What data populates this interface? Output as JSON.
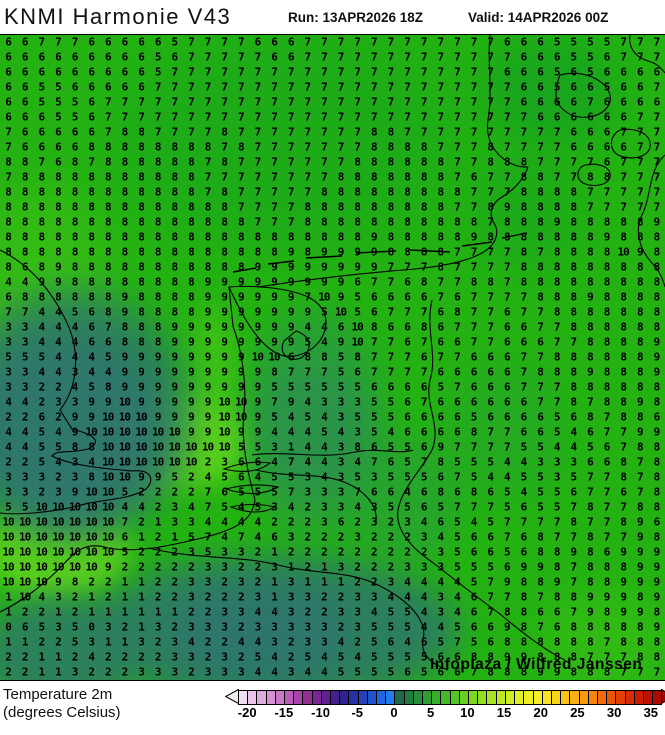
{
  "header": {
    "title": "KNMI Harmonie V43",
    "run_label": "Run: 13APR2026 18Z",
    "valid_label": "Valid: 14APR2026 00Z"
  },
  "footer": {
    "param_line1": "Temperature 2m",
    "param_line2": "(degrees Celsius)"
  },
  "attribution": "Infoplaza / Wilfred Janssen",
  "map": {
    "palette": {
      "base": "#23b212",
      "g2": "#17a320",
      "bright": "#5ed31d",
      "mid": "#2a9a43",
      "mid2": "#2d8b55",
      "cold": "#2d7d60",
      "cold2": "#2f7078"
    },
    "grid": {
      "cols": 40,
      "rows": 43,
      "unit": "degrees Celsius",
      "values": [
        "6 6 7 7 7 6 6 6 6 6 5 7 7 7 7 6 6 6 7 7 7 7 7 7 7 7 7 7 7 7 6 6 6 5 5 5 5 7 7 7",
        "6 6 6 6 6 6 6 6 6 5 6 7 7 7 7 7 6 6 7 7 7 7 7 7 7 7 7 7 7 7 7 6 6 6 5 5 6 7 7 7",
        "6 6 6 6 6 6 6 6 6 5 7 7 7 7 7 7 7 7 7 7 7 7 7 7 7 7 7 7 7 7 6 6 6 5 6 5 6 6 6 6",
        "6 6 5 5 6 6 6 6 6 7 7 7 7 7 7 7 7 7 7 7 7 7 7 7 7 7 7 7 7 7 7 6 6 5 6 6 5 6 6 7",
        "6 6 5 5 5 6 7 7 7 7 7 7 7 7 7 7 7 7 7 7 7 7 7 7 7 7 7 7 7 7 7 6 6 6 6 7 6 6 6 6",
        "6 6 6 5 5 6 7 7 7 7 7 7 7 7 7 7 7 7 7 7 7 7 7 7 7 7 7 7 7 7 7 7 6 6 6 6 6 6 7 7",
        "7 6 6 6 6 6 7 8 8 7 7 7 7 8 7 7 7 7 7 7 7 7 8 8 7 7 7 7 7 7 7 7 7 7 6 6 6 7 7 7",
        "7 6 6 6 6 8 8 8 8 8 8 8 8 7 8 7 7 7 7 7 7 7 8 8 8 8 7 7 7 8 7 7 7 7 6 6 6 6 7 7",
        "8 8 7 6 8 7 8 8 8 8 8 8 7 8 7 7 7 7 7 7 7 8 8 8 8 8 8 7 7 8 8 8 7 7 7 7 6 7 7 7",
        "7 8 8 8 8 8 8 8 8 8 8 8 7 7 7 7 7 7 7 7 8 8 8 8 8 8 8 7 6 7 7 8 8 7 7 8 8 7 7 7",
        "8 8 8 8 8 8 8 8 8 8 8 8 7 8 7 7 7 7 7 8 8 8 8 8 8 8 8 8 7 7 7 8 8 8 8 7 7 7 7 7",
        "8 8 8 8 8 8 8 8 8 8 8 8 8 8 7 7 7 7 8 8 8 8 8 8 8 8 8 7 7 8 9 8 8 8 8 7 7 7 7 7",
        "8 8 8 8 8 8 8 8 8 8 8 8 8 8 8 7 7 7 8 8 8 8 8 8 8 8 8 8 8 7 8 8 8 9 8 8 8 8 8 9",
        "8 8 8 8 8 8 8 8 8 8 8 8 8 8 8 8 8 8 8 8 8 8 9 8 8 8 8 8 9 8 8 8 8 8 8 8 9 8 8 8",
        "8 8 8 8 8 8 8 8 8 8 8 8 8 8 8 8 8 9 8 9 9 9 9 8 8 8 8 7 7 7 7 8 7 8 8 8 8 10 9 8",
        "8 6 8 9 8 8 8 8 8 8 8 8 8 8 8 9 9 9 9 9 9 9 9 7 7 7 8 7 7 7 7 8 8 8 8 8 8 8 8 8",
        "4 4 9 9 8 8 8 8 8 8 8 8 9 9 9 9 9 9 9 9 9 6 7 7 6 8 7 7 8 8 7 8 8 8 8 8 8 8 8 8",
        "6 8 8 8 8 8 8 9 8 8 8 8 9 9 9 9 9 9 7 10 9 5 6 6 6 6 7 6 7 7 7 7 8 8 8 9 8 8 8 8",
        "7 7 4 4 5 6 8 9 8 8 8 8 9 9 9 9 9 9 9 5 10 5 6 7 7 7 6 8 7 7 6 7 7 8 8 8 8 8 8 8",
        "3 3 4 4 4 6 7 8 8 8 9 9 9 9 9 9 9 9 4 4 6 10 8 6 6 8 6 7 7 7 6 6 7 7 8 8 8 8 8 8",
        "3 3 4 4 4 6 6 8 8 8 9 9 9 9 9 9 9 9 5 4 9 10 7 7 6 7 6 6 7 7 6 6 6 7 7 8 8 8 8 9",
        "5 5 5 4 4 4 5 9 9 9 9 9 9 9 9 10 10 6 8 8 5 8 7 7 7 6 7 7 6 6 6 7 7 8 8 8 8 8 8 9",
        "3 3 4 4 3 4 4 9 9 9 9 9 9 9 9 9 8 7 7 7 5 6 7 7 7 7 6 6 6 6 6 7 8 8 8 9 8 8 8 9",
        "3 3 2 2 4 5 8 9 9 9 9 9 9 9 9 9 5 5 5 5 5 5 6 6 6 6 5 7 6 6 6 7 7 7 8 8 8 8 8 8",
        "4 4 2 3 3 9 9 10 9 9 9 9 9 10 10 9 7 9 4 3 3 3 5 5 6 7 6 6 6 6 6 6 7 7 8 7 8 8 9 8",
        "2 2 6 2 9 9 10 10 10 9 9 9 9 10 10 9 5 4 5 4 3 5 5 5 6 6 6 6 5 6 6 6 6 5 6 8 7 8 8 6",
        "4 4 5 4 9 10 10 10 10 10 10 9 9 10 9 9 4 4 4 5 4 3 5 4 6 6 6 6 8 7 7 6 6 5 4 6 7 7 9 9",
        "4 4 5 5 8 8 10 10 10 10 10 10 10 10 5 5 3 1 4 4 3 8 6 5 5 6 9 7 7 7 7 5 5 4 4 5 6 7 8 8",
        "2 2 5 4 3 4 10 10 10 10 10 10 2 3 6 6 4 7 4 4 3 4 7 6 5 7 8 5 5 5 4 4 3 3 3 6 6 8 7 8",
        "3 3 3 2 3 8 10 10 9 9 5 2 4 5 6 4 5 5 3 4 3 5 3 5 5 5 6 7 5 4 4 5 5 3 5 7 7 8 7 8",
        "3 3 2 3 9 10 10 5 2 2 2 2 7 6 5 5 5 7 3 3 3 7 6 6 4 6 8 6 8 6 5 4 5 5 6 7 7 6 7 8",
        "5 5 10 10 10 10 10 4 4 2 3 4 7 5 4 5 3 4 2 3 3 4 3 5 5 6 5 7 7 7 5 6 5 5 7 8 7 7 8 8",
        "10 10 10 10 10 10 10 7 2 1 3 3 4 4 4 4 2 2 2 3 6 2 3 2 3 4 6 5 4 5 7 7 7 7 8 7 7 8 9 6",
        "10 10 10 10 10 10 10 6 1 2 1 5 7 4 7 4 6 3 2 2 2 3 2 2 2 3 4 5 6 6 7 6 8 7 7 8 7 7 9 8",
        "10 10 10 10 10 10 10 5 2 2 2 3 5 3 3 2 1 2 2 2 2 2 2 2 2 2 3 5 6 6 5 6 8 8 9 8 6 9 9 9",
        "10 10 10 10 10 10 9 2 2 2 2 2 3 3 2 2 3 1 2 1 3 2 2 2 3 3 3 5 5 5 6 9 9 8 7 8 8 8 9 9",
        "10 10 10 9 8 2 2 1 1 2 2 3 3 2 3 2 1 3 1 1 1 2 2 3 4 4 4 4 5 7 9 8 8 9 7 8 8 9 9 9",
        "1 10 4 3 2 1 2 1 1 2 2 3 2 2 2 3 1 3 3 2 2 3 3 4 4 4 3 4 6 7 7 8 7 8 8 9 9 9 8 9",
        "1 2 2 1 2 1 1 1 1 1 1 2 2 3 3 4 4 3 2 2 3 3 4 5 5 4 3 4 6 7 8 8 6 6 7 9 8 9 9 8",
        "0 6 5 3 5 0 3 2 1 3 2 3 3 3 2 3 3 3 3 3 2 3 5 5 5 4 4 5 6 6 9 8 7 6 8 8 8 8 8 9",
        "1 1 2 2 5 3 1 1 3 2 3 4 2 2 4 4 3 2 3 3 4 2 5 6 4 6 5 7 5 6 8 8 8 8 8 8 7 8 8 8",
        "2 2 1 1 2 4 2 2 2 2 3 3 2 3 2 5 4 2 5 4 5 4 5 5 5 5 6 6 8 8 9 9 8 8 8 7 7 7 8 8",
        "2 2 1 1 3 2 2 2 3 3 3 2 3 3 3 4 4 3 4 4 5 5 5 5 6 5 6 6 7 8 8 8 9 9 8 8 8 7 7 7"
      ]
    }
  },
  "legend": {
    "title": "Temperature 2m (degrees Celsius)",
    "range_min": -21.25,
    "range_max": 36.25,
    "ticks": [
      -20,
      -15,
      -10,
      -5,
      0,
      5,
      10,
      15,
      20,
      25,
      30,
      35
    ],
    "left_arrow_color": "#f3eaf3",
    "right_arrow_color": "#9c0401",
    "segments": [
      "#f0dff0",
      "#e9c6e9",
      "#e0ace0",
      "#d592d5",
      "#c977c9",
      "#bb5cbb",
      "#a944a9",
      "#922f92",
      "#7a2694",
      "#5f2090",
      "#43208c",
      "#2d2492",
      "#2432a2",
      "#2142b8",
      "#1f54ce",
      "#1e68e2",
      "#227cee",
      "#1d6b4a",
      "#1f7c42",
      "#278e39",
      "#2f9e31",
      "#38ad2a",
      "#44bb26",
      "#55c724",
      "#69d023",
      "#7ed823",
      "#93de23",
      "#a8e423",
      "#bce923",
      "#cfed24",
      "#e0f026",
      "#eef128",
      "#f6ee27",
      "#f9e322",
      "#fad51d",
      "#fac418",
      "#f9b014",
      "#f89a10",
      "#f5830d",
      "#f16c0a",
      "#ea5407",
      "#e23e05",
      "#d82c04",
      "#cc1d03",
      "#bd1202",
      "#ad0a01"
    ]
  }
}
